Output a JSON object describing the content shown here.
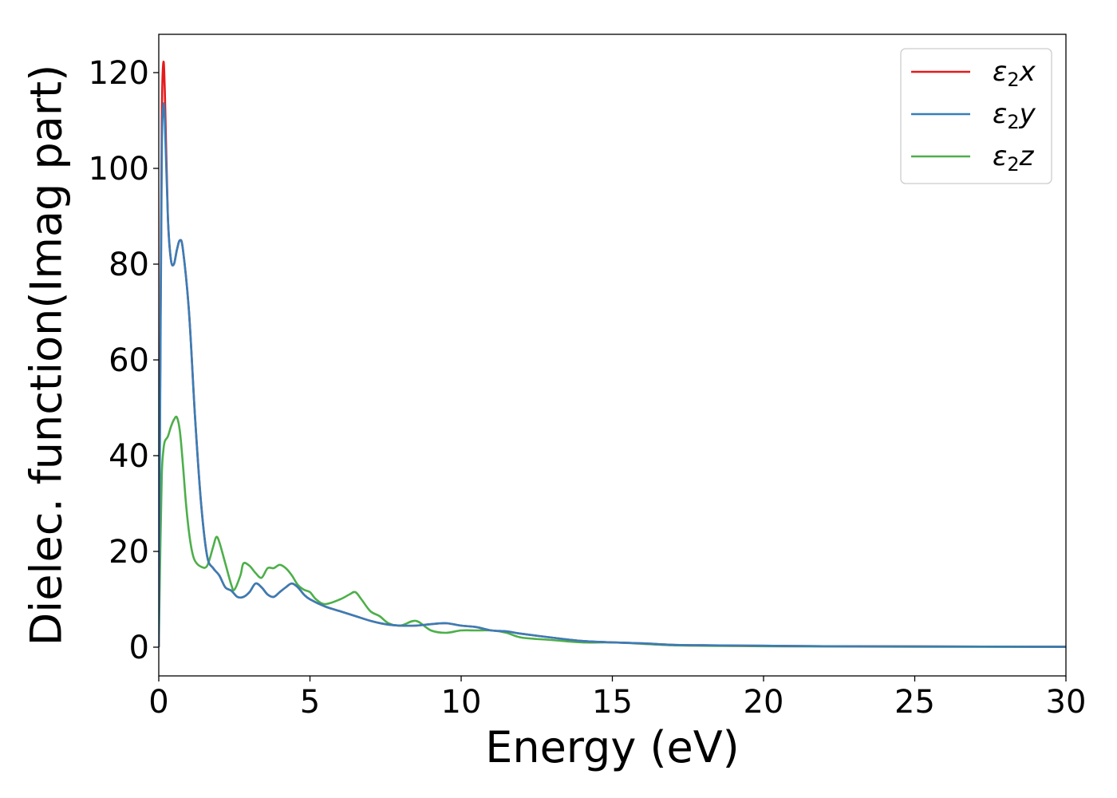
{
  "chart_data": {
    "type": "line",
    "xlabel": "Energy (eV)",
    "ylabel": "Dielec. function(Imag part)",
    "xlim": [
      0,
      30
    ],
    "ylim": [
      -6,
      128
    ],
    "xticks": [
      0,
      5,
      10,
      15,
      20,
      25,
      30
    ],
    "yticks": [
      0,
      20,
      40,
      60,
      80,
      100,
      120
    ],
    "grid": false,
    "legend_position": "top-right",
    "series": [
      {
        "name": "ε₂x",
        "legend_main": "ε",
        "legend_sub": "2",
        "legend_tail": "x",
        "color": "#e41a1c",
        "x": [
          0,
          0.05,
          0.1,
          0.15,
          0.2,
          0.3,
          0.4,
          0.5,
          0.6,
          0.7,
          0.8,
          1.0,
          1.2,
          1.4,
          1.6,
          1.8,
          2.0,
          2.2,
          2.4,
          2.6,
          2.8,
          3.0,
          3.2,
          3.4,
          3.6,
          3.8,
          4.0,
          4.2,
          4.4,
          4.6,
          4.8,
          5.0,
          5.5,
          6.0,
          6.5,
          7.0,
          7.5,
          8.0,
          8.5,
          9.0,
          9.5,
          10.0,
          10.5,
          11.0,
          11.5,
          12.0,
          13.0,
          14.0,
          15.0,
          16.0,
          17.0,
          18.0,
          20.0,
          22.0,
          25.0,
          30.0
        ],
        "y": [
          0,
          60,
          110,
          122,
          116,
          90,
          81,
          80,
          83,
          85,
          83,
          70,
          48,
          30,
          19,
          16.5,
          15,
          12.5,
          11.8,
          10.5,
          10.5,
          11.5,
          13.3,
          12.5,
          11,
          10.5,
          11.5,
          12.5,
          13.3,
          12.5,
          11,
          10,
          8.5,
          7.5,
          6.5,
          5.5,
          4.8,
          4.5,
          4.5,
          4.8,
          5,
          4.5,
          4.2,
          3.5,
          3.3,
          2.8,
          2,
          1.3,
          1,
          0.8,
          0.5,
          0.4,
          0.3,
          0.2,
          0.15,
          0.1
        ]
      },
      {
        "name": "ε₂y",
        "legend_main": "ε",
        "legend_sub": "2",
        "legend_tail": "y",
        "color": "#377eb8",
        "x": [
          0,
          0.05,
          0.1,
          0.15,
          0.2,
          0.3,
          0.4,
          0.5,
          0.6,
          0.7,
          0.8,
          1.0,
          1.2,
          1.4,
          1.6,
          1.8,
          2.0,
          2.2,
          2.4,
          2.6,
          2.8,
          3.0,
          3.2,
          3.4,
          3.6,
          3.8,
          4.0,
          4.2,
          4.4,
          4.6,
          4.8,
          5.0,
          5.5,
          6.0,
          6.5,
          7.0,
          7.5,
          8.0,
          8.5,
          9.0,
          9.5,
          10.0,
          10.5,
          11.0,
          11.5,
          12.0,
          13.0,
          14.0,
          15.0,
          16.0,
          17.0,
          18.0,
          20.0,
          22.0,
          25.0,
          30.0
        ],
        "y": [
          0,
          55,
          103,
          113,
          110,
          90,
          81,
          80,
          83,
          85,
          83,
          70,
          48,
          30,
          19,
          16.5,
          15,
          12.5,
          11.8,
          10.5,
          10.5,
          11.5,
          13.3,
          12.5,
          11,
          10.5,
          11.5,
          12.5,
          13.3,
          12.5,
          11,
          10,
          8.5,
          7.5,
          6.5,
          5.5,
          4.8,
          4.5,
          4.5,
          4.8,
          5,
          4.5,
          4.2,
          3.5,
          3.3,
          2.8,
          2,
          1.3,
          1,
          0.8,
          0.5,
          0.4,
          0.3,
          0.2,
          0.15,
          0.1
        ]
      },
      {
        "name": "ε₂z",
        "legend_main": "ε",
        "legend_sub": "2",
        "legend_tail": "z",
        "color": "#4daf4a",
        "x": [
          0,
          0.05,
          0.1,
          0.15,
          0.2,
          0.3,
          0.4,
          0.5,
          0.6,
          0.7,
          0.8,
          0.9,
          1.0,
          1.1,
          1.2,
          1.4,
          1.6,
          1.8,
          1.9,
          2.0,
          2.2,
          2.4,
          2.5,
          2.7,
          2.8,
          3.0,
          3.2,
          3.4,
          3.6,
          3.8,
          4.0,
          4.2,
          4.4,
          4.6,
          4.8,
          5.0,
          5.2,
          5.5,
          6.0,
          6.3,
          6.5,
          6.7,
          7.0,
          7.3,
          7.6,
          8.0,
          8.5,
          9.0,
          9.5,
          10.0,
          10.5,
          11.0,
          11.5,
          12.0,
          13.0,
          14.0,
          15.0,
          16.0,
          17.0,
          18.0,
          20.0,
          22.0,
          25.0,
          30.0
        ],
        "y": [
          0,
          20,
          36,
          41,
          43,
          44,
          46,
          47.5,
          48,
          45,
          38,
          30,
          24,
          20,
          18,
          16.8,
          17,
          21,
          23,
          22,
          17.5,
          13,
          12,
          15,
          17.5,
          17,
          15.5,
          14.5,
          16.5,
          16.5,
          17.2,
          16.5,
          15,
          13,
          12,
          11.5,
          10,
          9,
          10,
          11,
          11.5,
          10,
          7.5,
          6.5,
          5,
          4.5,
          5.5,
          3.5,
          3,
          3.5,
          3.5,
          3.5,
          3,
          2,
          1.5,
          1,
          1,
          0.7,
          0.4,
          0.3,
          0.2,
          0.15,
          0.1,
          0.05
        ]
      }
    ]
  }
}
